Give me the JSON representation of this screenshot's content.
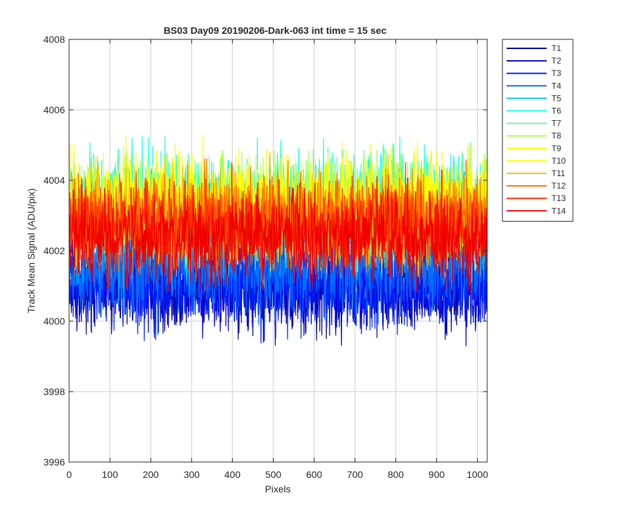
{
  "chart_data": {
    "type": "line",
    "title": "BS03 Day09 20190206-Dark-063 int time = 15 sec",
    "xlabel": "Pixels",
    "ylabel": "Track Mean Signal (ADU/pix)",
    "xlim": [
      0,
      1024
    ],
    "ylim": [
      3996,
      4008
    ],
    "xticks": [
      0,
      100,
      200,
      300,
      400,
      500,
      600,
      700,
      800,
      900,
      1000
    ],
    "yticks": [
      3996,
      3998,
      4000,
      4002,
      4004,
      4006,
      4008
    ],
    "grid": true,
    "legend_position": "outside-top-right",
    "colors": [
      "#00008F",
      "#0000D0",
      "#0020FF",
      "#0070FF",
      "#00C0FF",
      "#10FFEF",
      "#60FF9F",
      "#B0FF4F",
      "#FFFF00",
      "#FFFF00",
      "#FFC000",
      "#FF7000",
      "#FF3000",
      "#F00000"
    ],
    "series": [
      {
        "name": "T1",
        "base": 4001.0,
        "amp": 1.35
      },
      {
        "name": "T2",
        "base": 4001.0,
        "amp": 1.35
      },
      {
        "name": "T3",
        "base": 4001.1,
        "amp": 1.4
      },
      {
        "name": "T4",
        "base": 4001.6,
        "amp": 1.55
      },
      {
        "name": "T5",
        "base": 4002.6,
        "amp": 1.6
      },
      {
        "name": "T6",
        "base": 4003.4,
        "amp": 1.55
      },
      {
        "name": "T7",
        "base": 4003.2,
        "amp": 1.5
      },
      {
        "name": "T8",
        "base": 4003.3,
        "amp": 1.5
      },
      {
        "name": "T9",
        "base": 4003.2,
        "amp": 1.5
      },
      {
        "name": "T10",
        "base": 4003.3,
        "amp": 1.5
      },
      {
        "name": "T11",
        "base": 4002.9,
        "amp": 1.45
      },
      {
        "name": "T12",
        "base": 4002.9,
        "amp": 1.45
      },
      {
        "name": "T13",
        "base": 4002.6,
        "amp": 1.4
      },
      {
        "name": "T14",
        "base": 4002.4,
        "amp": 1.45
      }
    ]
  }
}
